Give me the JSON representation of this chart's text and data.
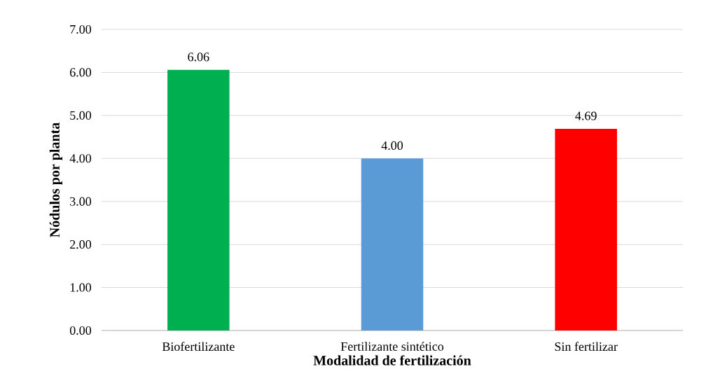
{
  "chart_data": {
    "type": "bar",
    "xlabel": "Modalidad de fertilización",
    "ylabel": "Nódulos por planta",
    "categories": [
      "Biofertilizante",
      "Fertilizante sintético",
      "Sin fertilizar"
    ],
    "values": [
      6.06,
      4.0,
      4.69
    ],
    "value_labels": [
      "6.06",
      "4.00",
      "4.69"
    ],
    "colors": [
      "#00b050",
      "#5b9bd5",
      "#ff0000"
    ],
    "ylim": [
      0,
      7
    ],
    "yticks": [
      {
        "value": 0,
        "label": "0.00"
      },
      {
        "value": 1,
        "label": "1.00"
      },
      {
        "value": 2,
        "label": "2.00"
      },
      {
        "value": 3,
        "label": "3.00"
      },
      {
        "value": 4,
        "label": "4.00"
      },
      {
        "value": 5,
        "label": "5.00"
      },
      {
        "value": 6,
        "label": "6.00"
      },
      {
        "value": 7,
        "label": "7.00"
      }
    ],
    "grid": "y"
  }
}
